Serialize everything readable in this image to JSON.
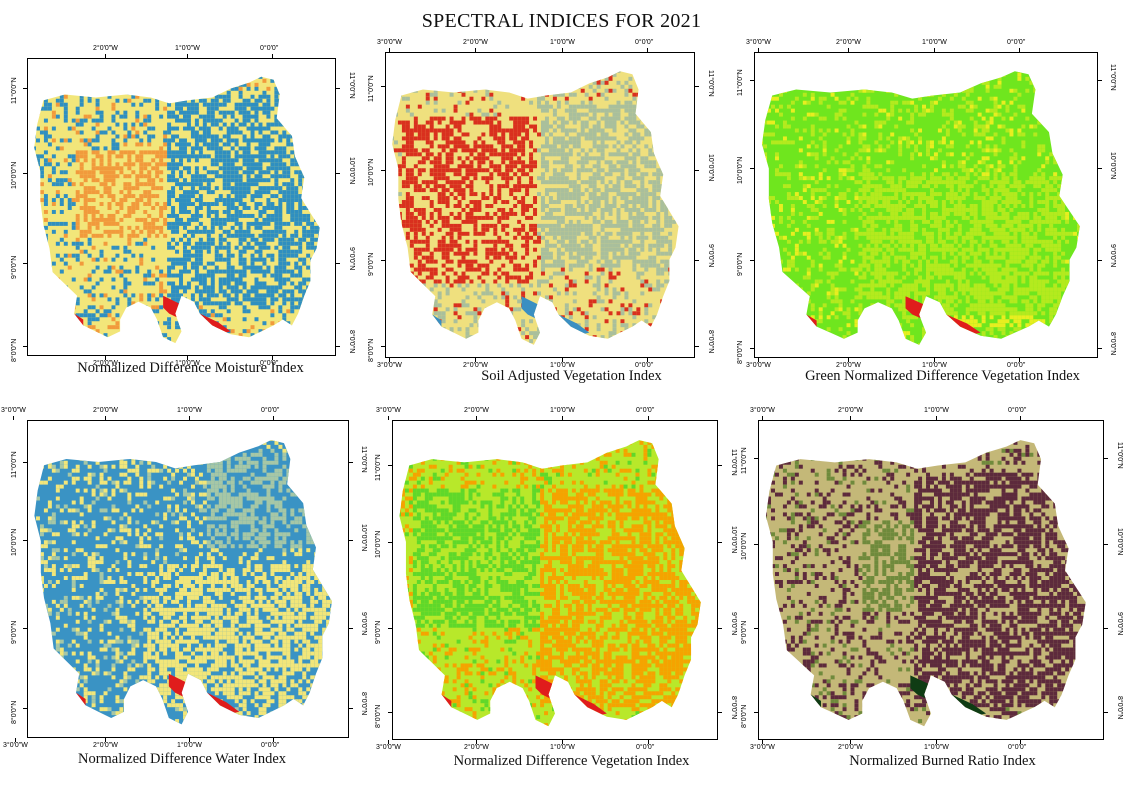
{
  "title": "SPECTRAL INDICES FOR 2021",
  "panels": [
    {
      "caption": "Normalized Difference Moisture Index",
      "lon_labels": [
        "2°0'0\"W",
        "1°0'0\"W",
        "0°0'0\""
      ],
      "lat_labels": [
        "11°0'0\"N",
        "10°0'0\"N",
        "9°0'0\"N",
        "8°0'0\"N"
      ],
      "palette": {
        "base": "#f2e67a",
        "second": "#2f8fc0",
        "third": "#f19a3c",
        "water": "#e01c1c"
      },
      "class_colors": [
        "#e01c1c",
        "#f19a3c",
        "#f2e67a",
        "#2f8fc0"
      ]
    },
    {
      "caption": "Soil Adjusted Vegetation Index",
      "lon_labels": [
        "3°0'0\"W",
        "2°0'0\"W",
        "1°0'0\"W",
        "0°0'0\""
      ],
      "lat_labels": [
        "11°0'0\"N",
        "10°0'0\"N",
        "9°0'0\"N",
        "8°0'0\"N"
      ],
      "palette": {
        "base": "#efe07e",
        "second": "#a9bf9c",
        "third": "#d9301e",
        "water": "#3a8fc2"
      },
      "class_colors": [
        "#d9301e",
        "#e98b3a",
        "#efe07e",
        "#a9bf9c",
        "#3a8fc2"
      ]
    },
    {
      "caption": "Green Normalized Difference Vegetation Index",
      "lon_labels": [
        "3°0'0\"W",
        "2°0'0\"W",
        "1°0'0\"W",
        "0°0'0\""
      ],
      "lat_labels": [
        "11°0'0\"N",
        "10°0'0\"N",
        "9°0'0\"N",
        "8°0'0\"N"
      ],
      "palette": {
        "base": "#6fe61e",
        "second": "#b4ea1e",
        "third": "#e8ee20",
        "water": "#e01c1c"
      },
      "class_colors": [
        "#e01c1c",
        "#e8ee20",
        "#b4ea1e",
        "#6fe61e"
      ]
    },
    {
      "caption": "Normalized Difference Water Index",
      "lon_labels": [
        "3°0'0\"W",
        "2°0'0\"W",
        "1°0'0\"W",
        "0°0'0\""
      ],
      "lat_labels": [
        "11°0'0\"N",
        "10°0'0\"N",
        "9°0'0\"N",
        "8°0'0\"N"
      ],
      "palette": {
        "base": "#3a93c4",
        "second": "#f2e67a",
        "third": "#a6c7a6",
        "water": "#e01c1c"
      },
      "class_colors": [
        "#e01c1c",
        "#f2e67a",
        "#a6c7a6",
        "#3a93c4"
      ]
    },
    {
      "caption": "Normalized Difference Vegetation Index",
      "lon_labels": [
        "3°0'0\"W",
        "2°0'0\"W",
        "1°0'0\"W",
        "0°0'0\""
      ],
      "lat_labels": [
        "11°0'0\"N",
        "10°0'0\"N",
        "9°0'0\"N",
        "8°0'0\"N"
      ],
      "palette": {
        "base": "#b8e82a",
        "second": "#f5a300",
        "third": "#5fd82a",
        "water": "#e01c1c"
      },
      "class_colors": [
        "#e01c1c",
        "#f5a300",
        "#e8e41e",
        "#b8e82a",
        "#5fd82a"
      ]
    },
    {
      "caption": "Normalized Burned Ratio Index",
      "lon_labels": [
        "3°0'0\"W",
        "2°0'0\"W",
        "1°0'0\"W",
        "0°0'0\""
      ],
      "lat_labels": [
        "11°0'0\"N",
        "10°0'0\"N",
        "9°0'0\"N",
        "8°0'0\"N"
      ],
      "palette": {
        "base": "#c4b878",
        "second": "#5d2a3c",
        "third": "#6f8a3c",
        "water": "#0f3c14"
      },
      "class_colors": [
        "#0f3c14",
        "#6f8a3c",
        "#c4b878",
        "#5d2a3c"
      ]
    }
  ]
}
